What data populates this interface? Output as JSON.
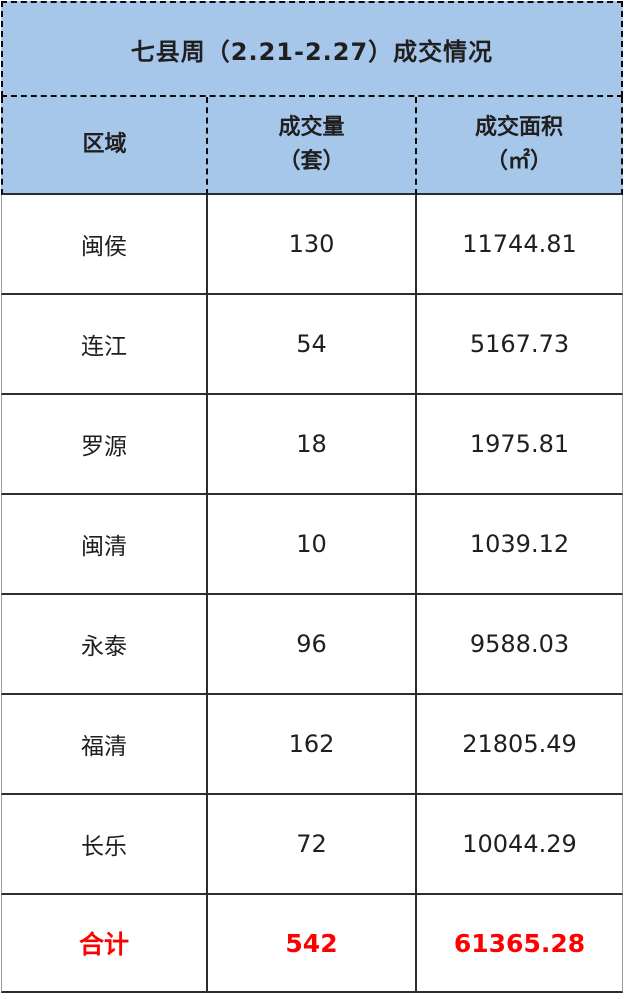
{
  "title": "七县周（2.21-2.27）成交情况",
  "header": {
    "col1": "区域",
    "col2_line1": "成交量",
    "col2_line2": "（套）",
    "col3_line1": "成交面积",
    "col3_line2": "（㎡）"
  },
  "rows": [
    {
      "region": "闽侯",
      "volume": "130",
      "area": "11744.81"
    },
    {
      "region": "连江",
      "volume": "54",
      "area": "5167.73"
    },
    {
      "region": "罗源",
      "volume": "18",
      "area": "1975.81"
    },
    {
      "region": "闽清",
      "volume": "10",
      "area": "1039.12"
    },
    {
      "region": "永泰",
      "volume": "96",
      "area": "9588.03"
    },
    {
      "region": "福清",
      "volume": "162",
      "area": "21805.49"
    },
    {
      "region": "长乐",
      "volume": "72",
      "area": "10044.29"
    }
  ],
  "total": {
    "region": "合计",
    "volume": "542",
    "area": "61365.28"
  },
  "colors": {
    "header_bg": "#a7c7ea",
    "border_dark": "#2d2d2d",
    "border_light": "#9b9b9b",
    "dashed_border": "#0a0a0a",
    "total_text": "#ff0000",
    "body_text": "#1f1f1f"
  },
  "chart_data": {
    "type": "table",
    "title": "七县周（2.21-2.27）成交情况",
    "columns": [
      "区域",
      "成交量（套）",
      "成交面积（㎡）"
    ],
    "rows": [
      [
        "闽侯",
        130,
        11744.81
      ],
      [
        "连江",
        54,
        5167.73
      ],
      [
        "罗源",
        18,
        1975.81
      ],
      [
        "闽清",
        10,
        1039.12
      ],
      [
        "永泰",
        96,
        9588.03
      ],
      [
        "福清",
        162,
        21805.49
      ],
      [
        "长乐",
        72,
        10044.29
      ]
    ],
    "total_row": [
      "合计",
      542,
      61365.28
    ],
    "layout": "3-column centered table, blue dashed header block, white solid-bordered body, red bold totals row"
  }
}
